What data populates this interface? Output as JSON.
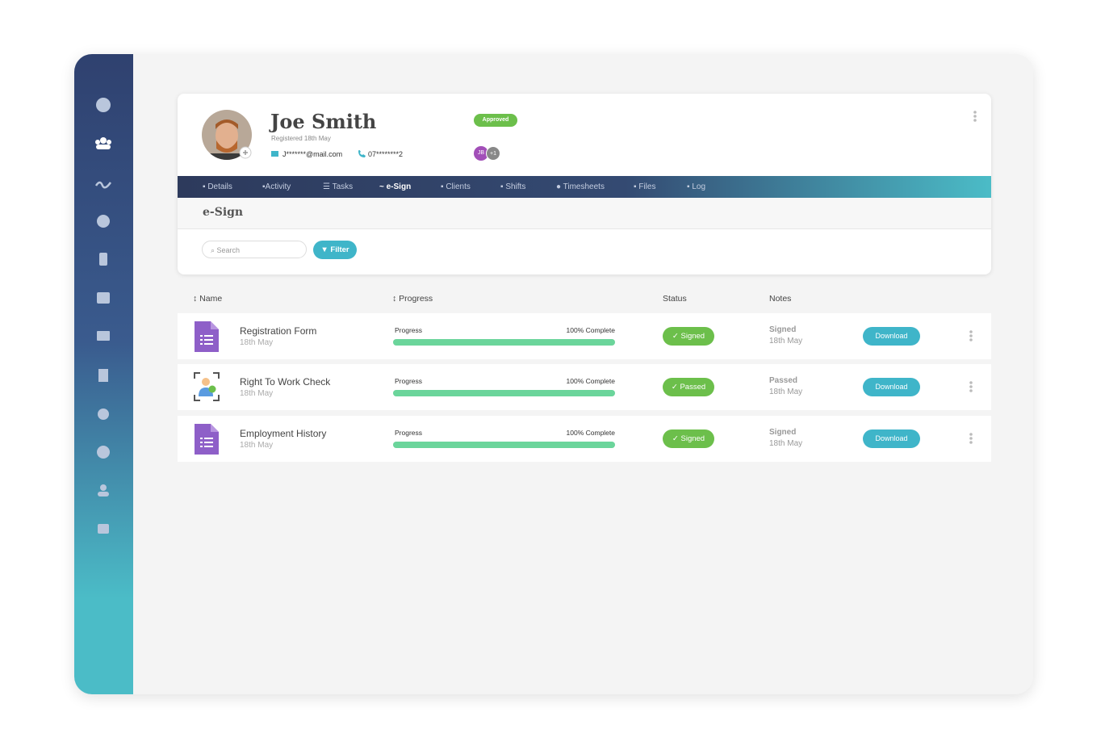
{
  "profile": {
    "name": "Joe Smith",
    "registered": "Registered 18th May",
    "email": "J*******@mail.com",
    "phone": "07********2",
    "status": "Approved",
    "assignees": [
      "JB",
      "+1"
    ]
  },
  "tabs": [
    "Details",
    "Activity",
    "Tasks",
    "e-Sign",
    "Clients",
    "Shifts",
    "Timesheets",
    "Files",
    "Log"
  ],
  "section": {
    "title": "e-Sign",
    "search_placeholder": "Search",
    "filter": "Filter"
  },
  "columns": [
    "Name",
    "Progress",
    "Status",
    "Notes"
  ],
  "rows": [
    {
      "name": "Registration Form",
      "date": "18th May",
      "progress_title": "Progress",
      "progress": 100,
      "progress_label": "100% Complete",
      "status": "Signed",
      "note": "Signed",
      "note_date": "18th May",
      "action": "Download"
    },
    {
      "name": "Right To Work Check",
      "date": "18th May",
      "progress_title": "Progress",
      "progress": 100,
      "progress_label": "100% Complete",
      "status": "Passed",
      "note": "Passed",
      "note_date": "18th May",
      "action": "Download"
    },
    {
      "name": "Employment History",
      "date": "18th May",
      "progress_title": "Progress",
      "progress": 100,
      "progress_label": "100% Complete",
      "status": "Signed",
      "note": "Signed",
      "note_date": "18th May",
      "action": "Download"
    }
  ]
}
